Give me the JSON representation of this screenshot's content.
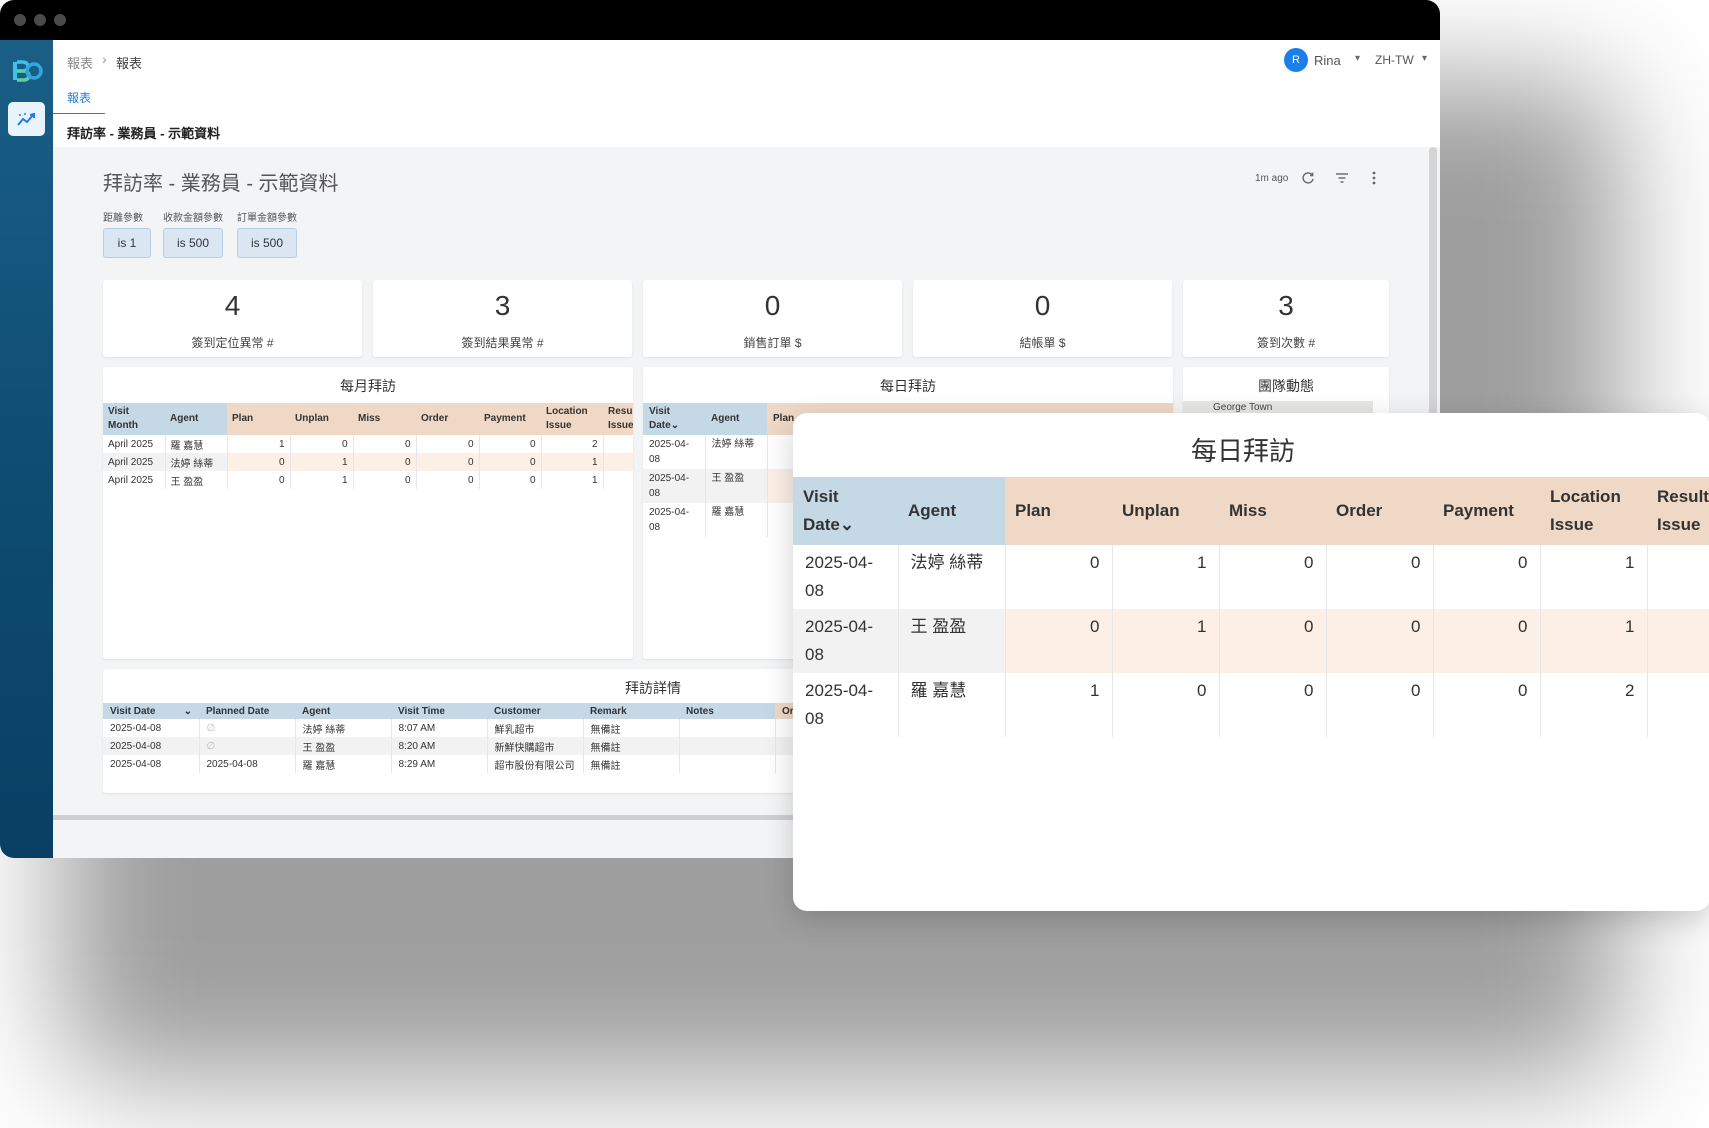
{
  "breadcrumb": {
    "root": "報表",
    "current": "報表"
  },
  "user": {
    "initial": "R",
    "name": "Rina",
    "language": "ZH-TW"
  },
  "tabs": [
    {
      "label": "報表"
    }
  ],
  "page_title": "拜訪率 - 業務員 - 示範資料",
  "dashboard": {
    "title": "拜訪率 - 業務員 - 示範資料",
    "updated": "1m ago",
    "filters": [
      {
        "label": "距離參數",
        "value": "is 1"
      },
      {
        "label": "收款金額參數",
        "value": "is 500"
      },
      {
        "label": "訂單金額參數",
        "value": "is 500"
      }
    ]
  },
  "kpis": [
    {
      "value": "4",
      "label": "簽到定位異常 #"
    },
    {
      "value": "3",
      "label": "簽到結果異常 #"
    },
    {
      "value": "0",
      "label": "銷售訂單 $"
    },
    {
      "value": "0",
      "label": "結帳單 $"
    },
    {
      "value": "3",
      "label": "簽到次數 #"
    }
  ],
  "monthly": {
    "title": "每月拜訪",
    "columns": [
      "Visit Month",
      "Agent",
      "Plan",
      "Unplan",
      "Miss",
      "Order",
      "Payment",
      "Location Issue",
      "Result Issue"
    ],
    "rows": [
      [
        "April 2025",
        "羅 嘉慧",
        "1",
        "0",
        "0",
        "0",
        "0",
        "2",
        ""
      ],
      [
        "April 2025",
        "法婷 絲蒂",
        "0",
        "1",
        "0",
        "0",
        "0",
        "1",
        ""
      ],
      [
        "April 2025",
        "王 盈盈",
        "0",
        "1",
        "0",
        "0",
        "0",
        "1",
        ""
      ]
    ]
  },
  "daily": {
    "title": "每日拜訪",
    "columns": [
      "Visit Date",
      "Agent",
      "Plan",
      "Unplan",
      "Miss",
      "Order",
      "Payment",
      "Location Issue",
      "Result Issue"
    ],
    "small_columns": [
      "Visit Date",
      "Agent",
      "Plan",
      "Location",
      "Resul"
    ],
    "rows": [
      [
        "2025-04-08",
        "法婷 絲蒂",
        "0",
        "1",
        "0",
        "0",
        "0",
        "1",
        ""
      ],
      [
        "2025-04-08",
        "王 盈盈",
        "0",
        "1",
        "0",
        "0",
        "0",
        "1",
        ""
      ],
      [
        "2025-04-08",
        "羅 嘉慧",
        "1",
        "0",
        "0",
        "0",
        "0",
        "2",
        ""
      ]
    ]
  },
  "team": {
    "title": "團隊動態",
    "map_label": "George Town"
  },
  "visits": {
    "title": "拜訪詳情",
    "columns": [
      "Visit Date",
      "Planned Date",
      "Agent",
      "Visit Time",
      "Customer",
      "Remark",
      "Notes",
      "Or"
    ],
    "rows": [
      [
        "2025-04-08",
        "∅",
        "法婷 絲蒂",
        "8:07 AM",
        "鮮乳超市",
        "無備註",
        "",
        ""
      ],
      [
        "2025-04-08",
        "∅",
        "王 盈盈",
        "8:20 AM",
        "新鮮快購超市",
        "無備註",
        "",
        ""
      ],
      [
        "2025-04-08",
        "2025-04-08",
        "羅 嘉慧",
        "8:29 AM",
        "超市股份有限公司",
        "無備註",
        "",
        ""
      ]
    ]
  }
}
